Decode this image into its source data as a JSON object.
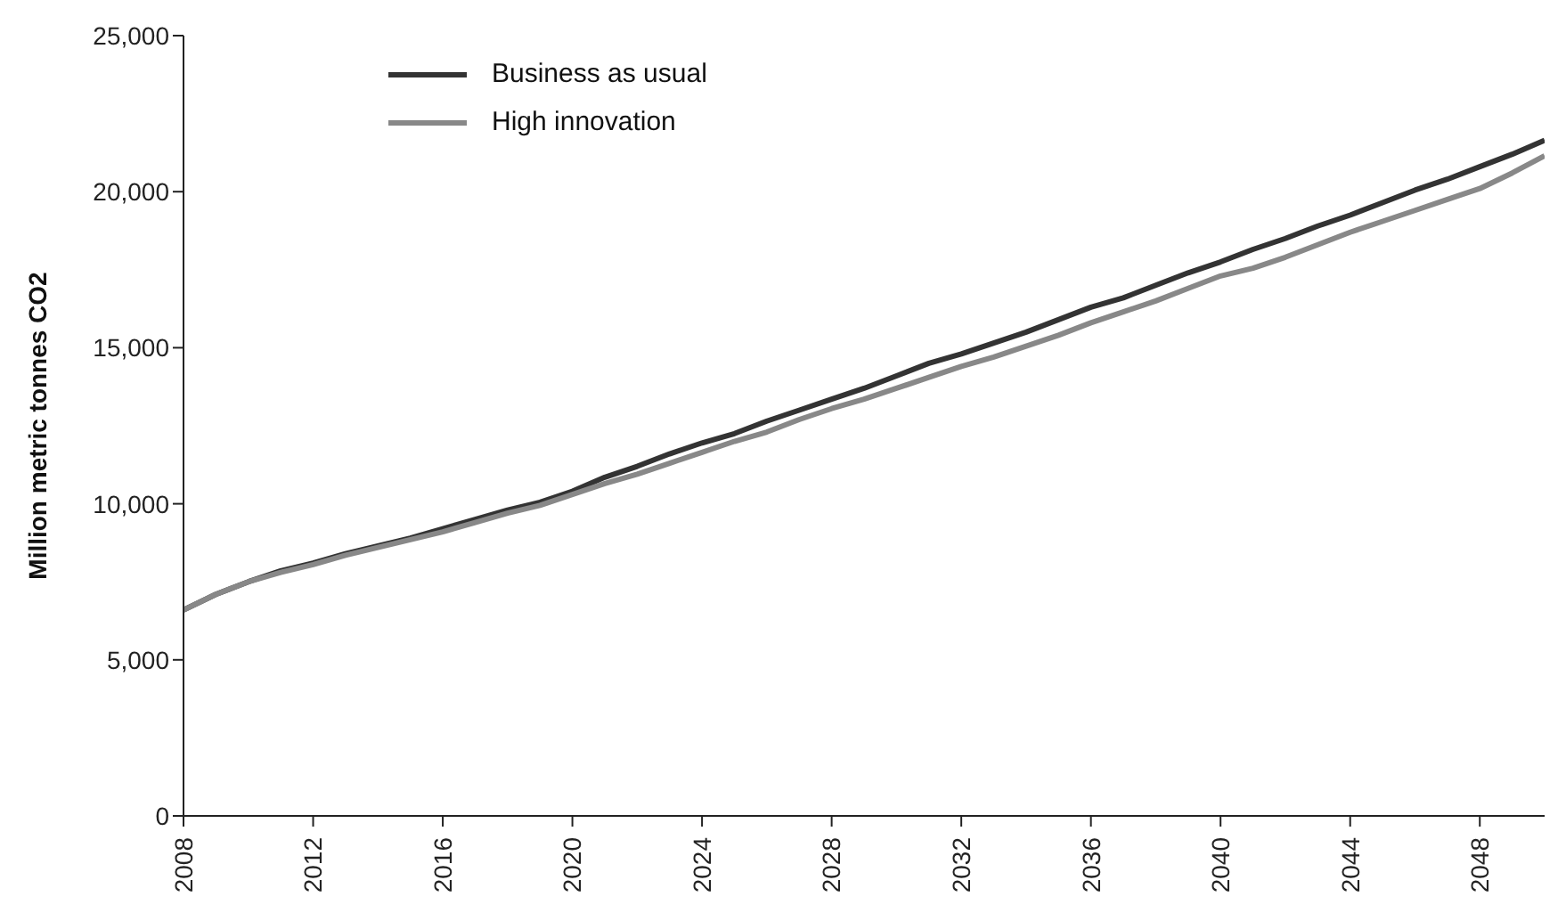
{
  "chart_data": {
    "type": "line",
    "ylabel": "Million metric tonnes CO2",
    "x": [
      2008,
      2009,
      2010,
      2011,
      2012,
      2013,
      2014,
      2015,
      2016,
      2017,
      2018,
      2019,
      2020,
      2021,
      2022,
      2023,
      2024,
      2025,
      2026,
      2027,
      2028,
      2029,
      2030,
      2031,
      2032,
      2033,
      2034,
      2035,
      2036,
      2037,
      2038,
      2039,
      2040,
      2041,
      2042,
      2043,
      2044,
      2045,
      2046,
      2047,
      2048,
      2049,
      2050
    ],
    "series": [
      {
        "name": "Business as usual",
        "color": "#333333",
        "values": [
          6600,
          7100,
          7500,
          7850,
          8100,
          8400,
          8650,
          8900,
          9200,
          9500,
          9800,
          10050,
          10400,
          10850,
          11200,
          11600,
          11950,
          12250,
          12650,
          13000,
          13350,
          13700,
          14100,
          14500,
          14800,
          15150,
          15500,
          15900,
          16300,
          16600,
          17000,
          17400,
          17750,
          18150,
          18500,
          18900,
          19250,
          19650,
          20050,
          20400,
          20800,
          21200,
          21650
        ]
      },
      {
        "name": "High innovation",
        "color": "#888888",
        "values": [
          6600,
          7100,
          7500,
          7800,
          8050,
          8350,
          8600,
          8850,
          9100,
          9400,
          9700,
          9950,
          10300,
          10650,
          10950,
          11300,
          11650,
          12000,
          12300,
          12700,
          13050,
          13350,
          13700,
          14050,
          14400,
          14700,
          15050,
          15400,
          15800,
          16150,
          16500,
          16900,
          17300,
          17550,
          17900,
          18300,
          18700,
          19050,
          19400,
          19750,
          20100,
          20600,
          21150
        ]
      }
    ],
    "xlim": [
      2008,
      2050
    ],
    "xticks": [
      2008,
      2012,
      2016,
      2020,
      2024,
      2028,
      2032,
      2036,
      2040,
      2044,
      2048
    ],
    "ylim": [
      0,
      25000
    ],
    "yticks": [
      0,
      {
        "value": 5000,
        "label": "5,000"
      },
      {
        "value": 10000,
        "label": "10,000"
      },
      {
        "value": 15000,
        "label": "15,000"
      },
      {
        "value": 20000,
        "label": "20,000"
      },
      {
        "value": 25000,
        "label": "25,000"
      }
    ],
    "grid": false,
    "legend": "top left",
    "marker": "none",
    "line_style": "solid"
  }
}
